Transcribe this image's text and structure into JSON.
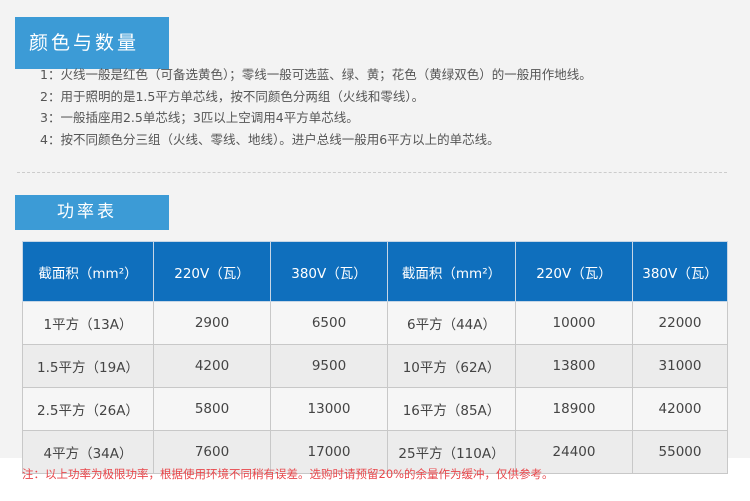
{
  "section1": {
    "title": "颜色与数量",
    "lines": [
      "1：火线一般是红色（可备选黄色）；零线一般可选蓝、绿、黄；花色（黄绿双色）的一般用作地线。",
      "2：用于照明的是1.5平方单芯线，按不同颜色分两组（火线和零线）。",
      "3：一般插座用2.5单芯线；3匹以上空调用4平方单芯线。",
      "4：按不同颜色分三组（火线、零线、地线）。进户总线一般用6平方以上的单芯线。"
    ]
  },
  "section2": {
    "title": "功率表"
  },
  "table": {
    "headers": [
      "截面积（mm²）",
      "220V（瓦）",
      "380V（瓦）",
      "截面积（mm²）",
      "220V（瓦）",
      "380V（瓦）"
    ],
    "rows": [
      [
        "1平方（13A）",
        "2900",
        "6500",
        "6平方（44A）",
        "10000",
        "22000"
      ],
      [
        "1.5平方（19A）",
        "4200",
        "9500",
        "10平方（62A）",
        "13800",
        "31000"
      ],
      [
        "2.5平方（26A）",
        "5800",
        "13000",
        "16平方（85A）",
        "18900",
        "42000"
      ],
      [
        "4平方（34A）",
        "7600",
        "17000",
        "25平方（110A）",
        "24400",
        "55000"
      ]
    ]
  },
  "note": "注：以上功率为极限功率，根据使用环境不同稍有误差。选购时请预留20%的余量作为缓冲，仅供参考。",
  "colors": {
    "header_blue": "#3c9bd6",
    "table_header": "#0f6fbd",
    "note_red": "#e8474b"
  }
}
